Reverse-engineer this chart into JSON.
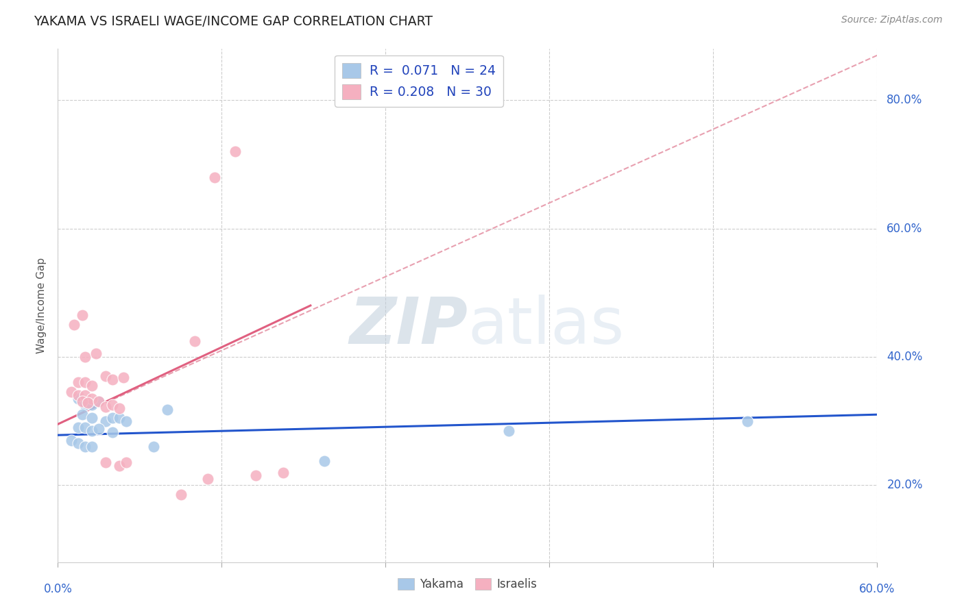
{
  "title": "YAKAMA VS ISRAELI WAGE/INCOME GAP CORRELATION CHART",
  "source": "Source: ZipAtlas.com",
  "ylabel": "Wage/Income Gap",
  "y_ticks": [
    0.2,
    0.4,
    0.6,
    0.8
  ],
  "y_tick_labels": [
    "20.0%",
    "40.0%",
    "60.0%",
    "80.0%"
  ],
  "xlim": [
    0.0,
    0.6
  ],
  "ylim": [
    0.08,
    0.88
  ],
  "watermark_zip": "ZIP",
  "watermark_atlas": "atlas",
  "legend_yakama_R": "0.071",
  "legend_yakama_N": "24",
  "legend_israelis_R": "0.208",
  "legend_israelis_N": "30",
  "yakama_color": "#a8c8e8",
  "israelis_color": "#f5b0c0",
  "yakama_line_color": "#2255cc",
  "israelis_line_color": "#e06080",
  "trend_dashed_color": "#e8a0b0",
  "yakama_points": [
    [
      0.015,
      0.335
    ],
    [
      0.02,
      0.325
    ],
    [
      0.025,
      0.325
    ],
    [
      0.03,
      0.33
    ],
    [
      0.018,
      0.31
    ],
    [
      0.025,
      0.305
    ],
    [
      0.035,
      0.3
    ],
    [
      0.04,
      0.305
    ],
    [
      0.045,
      0.305
    ],
    [
      0.05,
      0.3
    ],
    [
      0.015,
      0.29
    ],
    [
      0.02,
      0.29
    ],
    [
      0.025,
      0.285
    ],
    [
      0.03,
      0.288
    ],
    [
      0.04,
      0.282
    ],
    [
      0.08,
      0.318
    ],
    [
      0.01,
      0.27
    ],
    [
      0.015,
      0.265
    ],
    [
      0.02,
      0.26
    ],
    [
      0.025,
      0.26
    ],
    [
      0.07,
      0.26
    ],
    [
      0.33,
      0.285
    ],
    [
      0.505,
      0.3
    ],
    [
      0.195,
      0.238
    ]
  ],
  "israelis_points": [
    [
      0.01,
      0.345
    ],
    [
      0.015,
      0.34
    ],
    [
      0.02,
      0.34
    ],
    [
      0.025,
      0.335
    ],
    [
      0.018,
      0.33
    ],
    [
      0.022,
      0.328
    ],
    [
      0.03,
      0.33
    ],
    [
      0.035,
      0.322
    ],
    [
      0.04,
      0.325
    ],
    [
      0.045,
      0.32
    ],
    [
      0.015,
      0.36
    ],
    [
      0.02,
      0.36
    ],
    [
      0.025,
      0.355
    ],
    [
      0.035,
      0.37
    ],
    [
      0.04,
      0.365
    ],
    [
      0.048,
      0.368
    ],
    [
      0.02,
      0.4
    ],
    [
      0.028,
      0.405
    ],
    [
      0.012,
      0.45
    ],
    [
      0.018,
      0.465
    ],
    [
      0.1,
      0.425
    ],
    [
      0.115,
      0.68
    ],
    [
      0.13,
      0.72
    ],
    [
      0.035,
      0.235
    ],
    [
      0.045,
      0.23
    ],
    [
      0.05,
      0.235
    ],
    [
      0.11,
      0.21
    ],
    [
      0.145,
      0.215
    ],
    [
      0.165,
      0.22
    ],
    [
      0.09,
      0.185
    ]
  ],
  "yakama_trend_x": [
    0.0,
    0.6
  ],
  "yakama_trend_y": [
    0.278,
    0.31
  ],
  "israelis_trend_x": [
    0.0,
    0.185
  ],
  "israelis_trend_y": [
    0.295,
    0.48
  ],
  "dashed_trend_x": [
    0.0,
    0.6
  ],
  "dashed_trend_y": [
    0.295,
    0.87
  ]
}
